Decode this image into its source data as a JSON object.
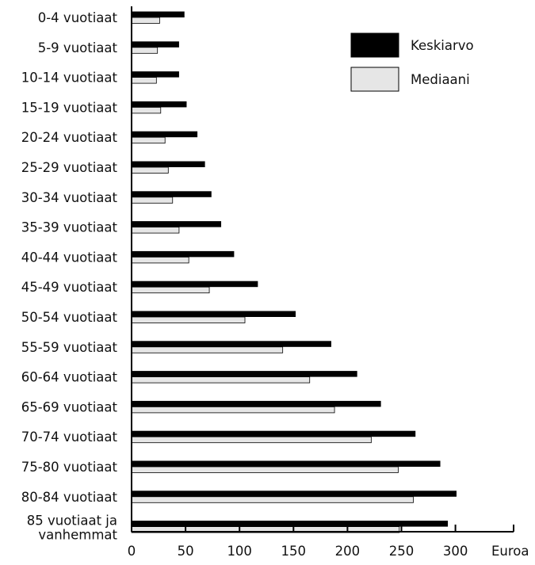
{
  "chart_data": {
    "type": "bar",
    "orientation": "horizontal",
    "categories": [
      "0-4 vuotiaat",
      "5-9 vuotiaat",
      "10-14 vuotiaat",
      "15-19 vuotiaat",
      "20-24 vuotiaat",
      "25-29 vuotiaat",
      "30-34 vuotiaat",
      "35-39 vuotiaat",
      "40-44 vuotiaat",
      "45-49 vuotiaat",
      "50-54 vuotiaat",
      "55-59 vuotiaat",
      "60-64 vuotiaat",
      "65-69 vuotiaat",
      "70-74 vuotiaat",
      "75-80 vuotiaat",
      "80-84 vuotiaat",
      "85 vuotiaat ja vanhemmat"
    ],
    "series": [
      {
        "name": "Keskiarvo",
        "color": "#000000",
        "values": [
          49,
          44,
          44,
          51,
          61,
          68,
          74,
          83,
          95,
          117,
          152,
          185,
          209,
          231,
          263,
          286,
          301,
          293
        ]
      },
      {
        "name": "Mediaani",
        "color": "#e6e6e6",
        "values": [
          26,
          24,
          23,
          27,
          31,
          34,
          38,
          44,
          53,
          72,
          105,
          140,
          165,
          188,
          222,
          247,
          261,
          248
        ]
      }
    ],
    "xlabel": "Euroa",
    "ylabel": "",
    "title": "",
    "xlim": [
      0,
      350
    ],
    "xticks": [
      0,
      50,
      100,
      150,
      200,
      250,
      300
    ],
    "grid": false,
    "legend_position": "top-right"
  }
}
